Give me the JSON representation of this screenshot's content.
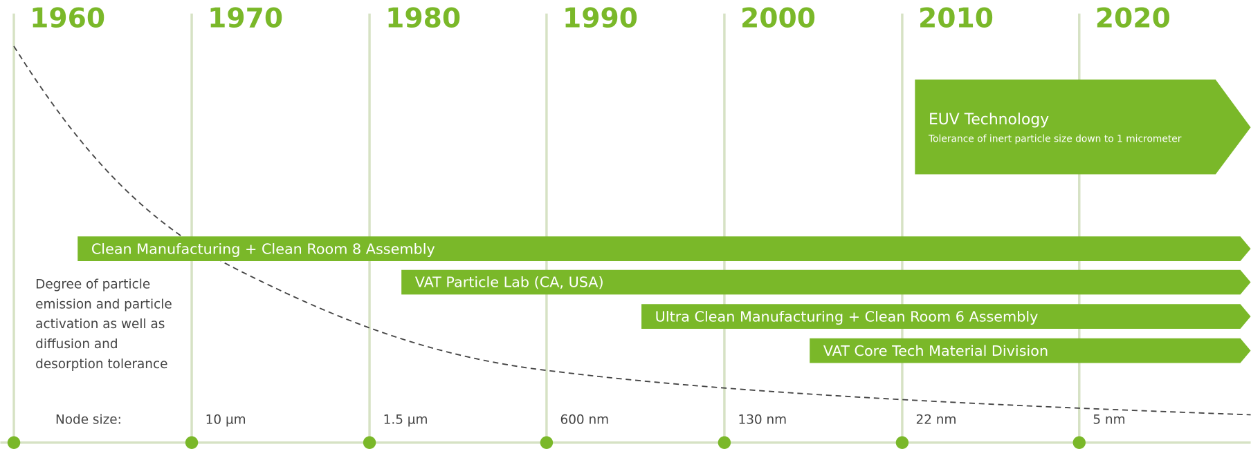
{
  "timeline": {
    "decades": [
      "1960",
      "1970",
      "1980",
      "1990",
      "2000",
      "2010",
      "2020"
    ],
    "node_size_label": "Node size:",
    "node_sizes": [
      null,
      "10 µm",
      "1.5 µm",
      "600 nm",
      "130 nm",
      "22 nm",
      "5 nm"
    ]
  },
  "curve_description": [
    "Degree of particle",
    "emission and particle",
    "activation as well as",
    "diffusion and",
    "desorption tolerance"
  ],
  "euv": {
    "title": "EUV Technology",
    "subtitle": "Tolerance of inert particle size down to 1 micrometer"
  },
  "bars": [
    "Clean Manufacturing + Clean Room 8 Assembly",
    "VAT Particle Lab (CA, USA)",
    "Ultra Clean Manufacturing + Clean Room 6 Assembly",
    "VAT Core Tech Material Division"
  ]
}
